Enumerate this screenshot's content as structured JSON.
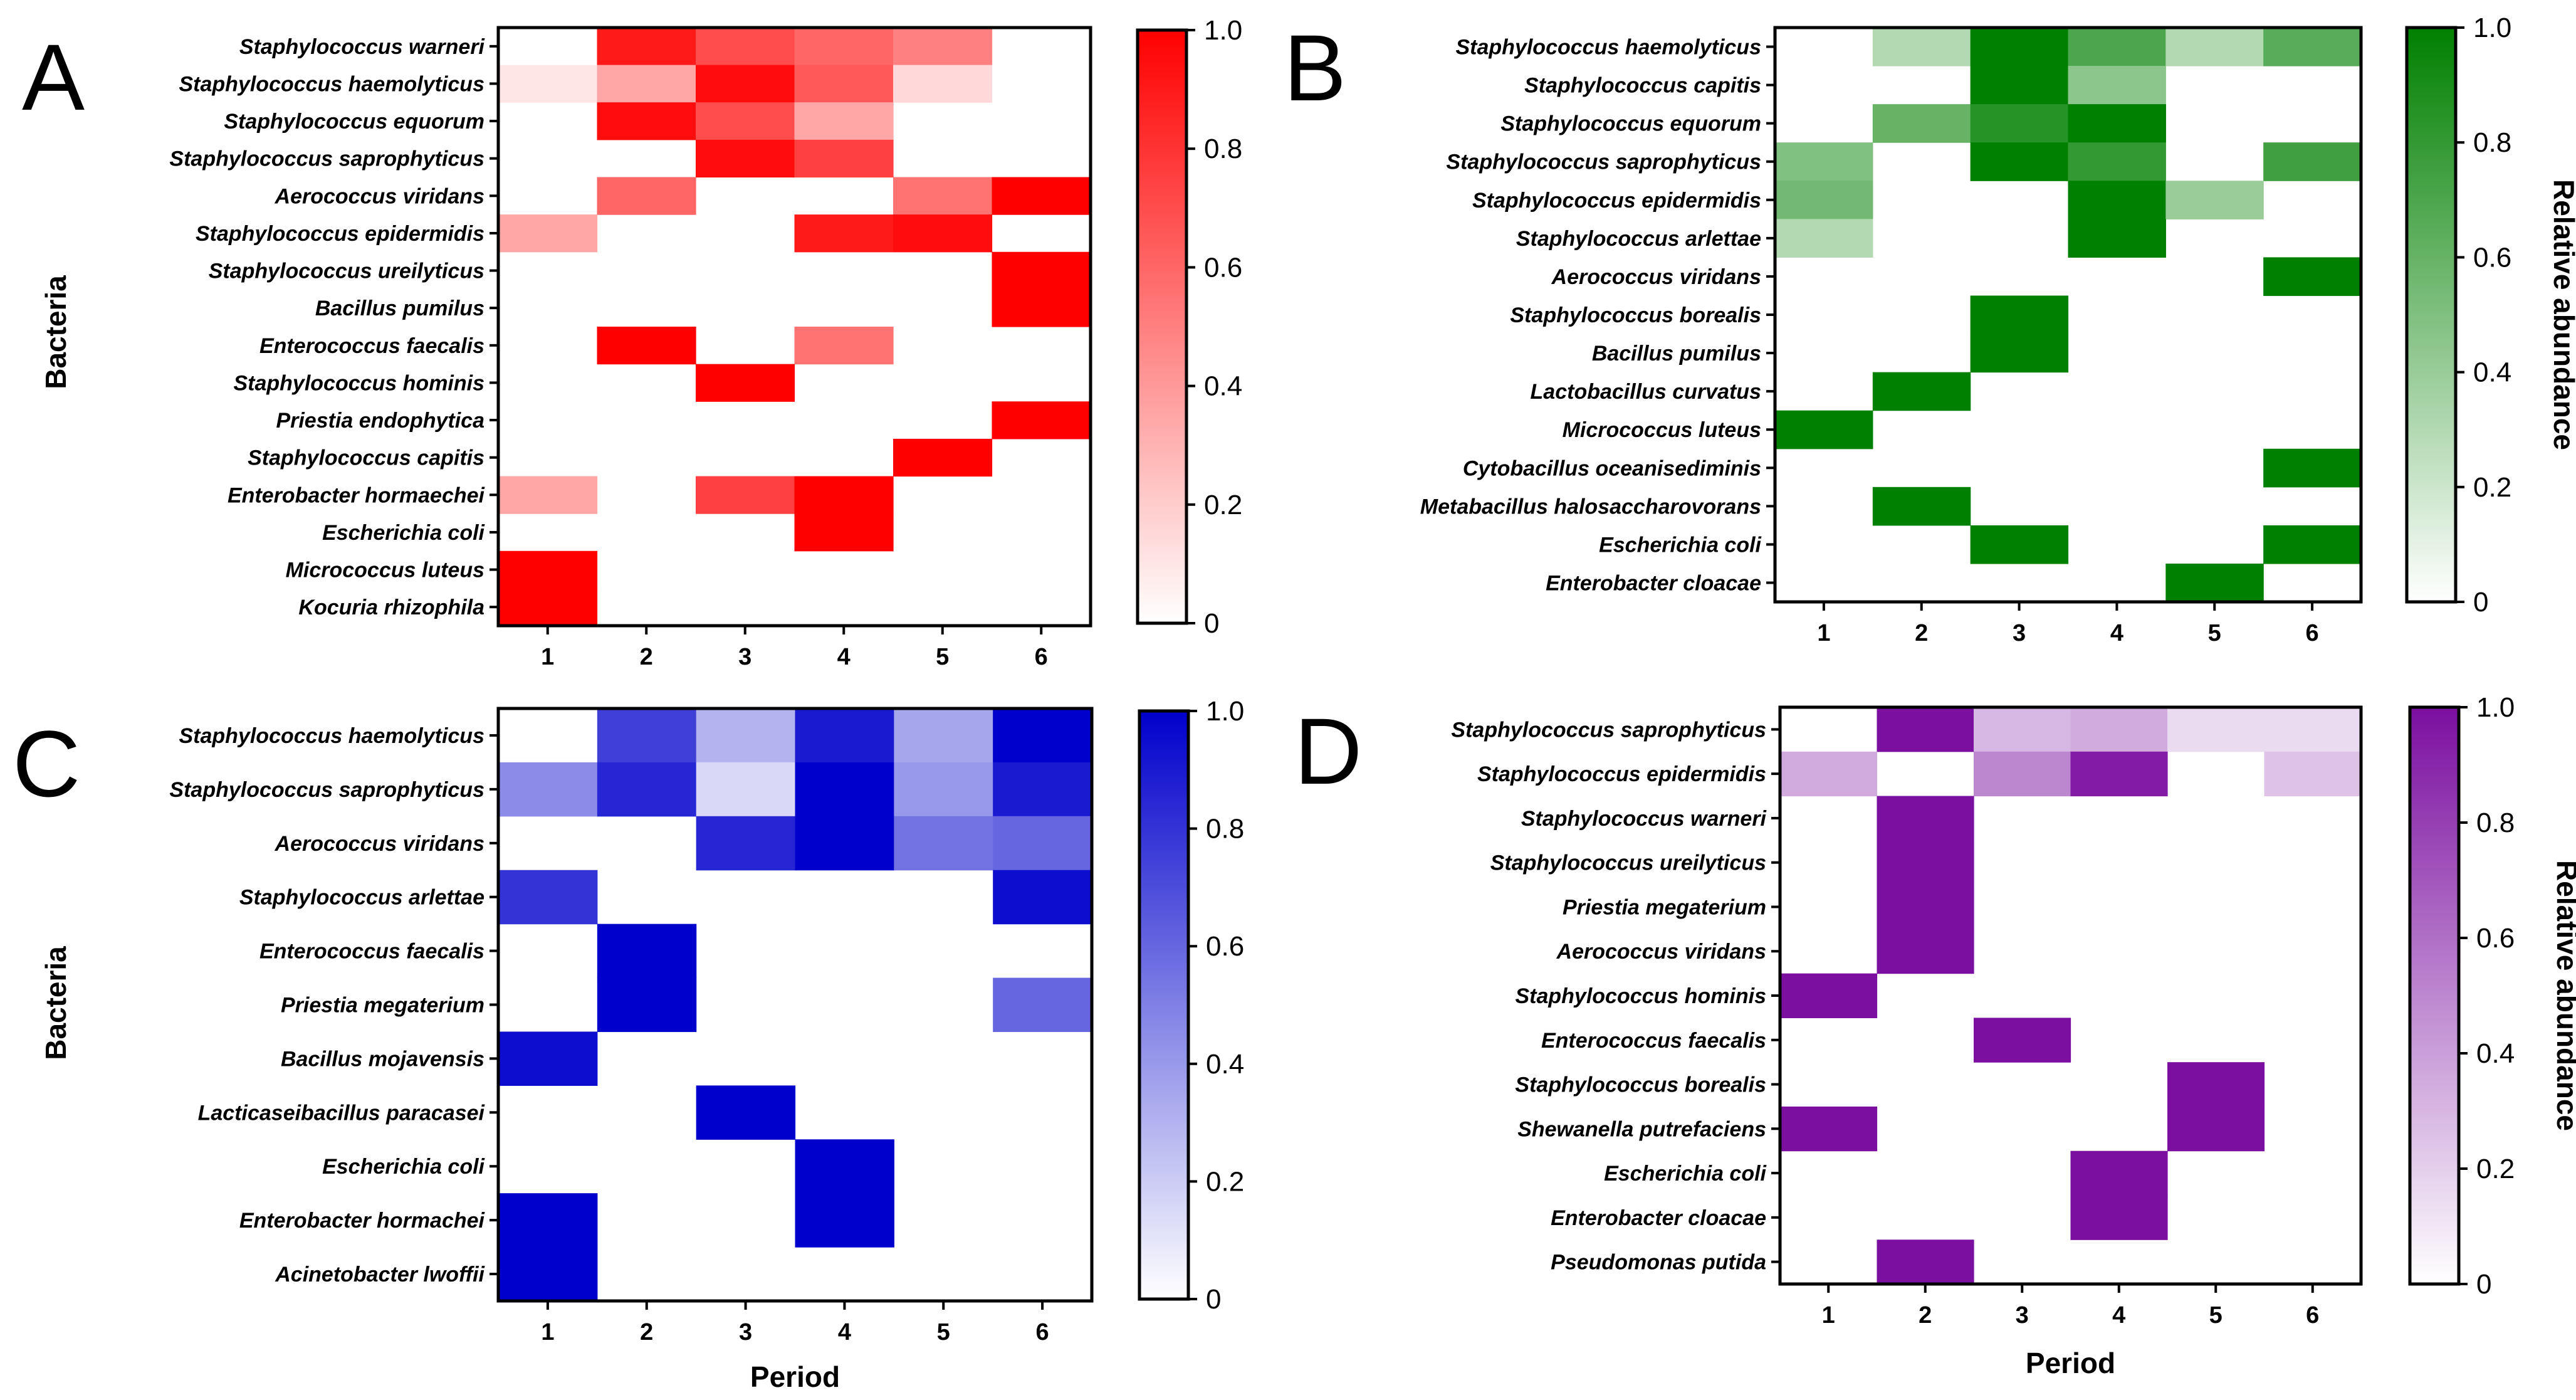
{
  "chart_data": [
    {
      "type": "heatmap",
      "panel_label": "A",
      "color": "#ff0000",
      "xlabel": "",
      "ylabel": "Bacteria",
      "colorbar_label": "",
      "colorbar_ticks": [
        "0",
        "0.2",
        "0.4",
        "0.6",
        "0.8",
        "1.0"
      ],
      "periods": [
        "1",
        "2",
        "3",
        "4",
        "5",
        "6"
      ],
      "species": [
        "Staphylococcus warneri",
        "Staphylococcus haemolyticus",
        "Staphylococcus equorum",
        "Staphylococcus saprophyticus",
        "Aerococcus viridans",
        "Staphylococcus epidermidis",
        "Staphylococcus ureilyticus",
        "Bacillus pumilus",
        "Enterococcus faecalis",
        "Staphylococcus hominis",
        "Priestia endophytica",
        "Staphylococcus capitis",
        "Enterobacter hormaechei",
        "Escherichia coli",
        "Micrococcus luteus",
        "Kocuria rhizophila"
      ],
      "values": [
        [
          0,
          0.9,
          0.7,
          0.6,
          0.5,
          0
        ],
        [
          0.1,
          0.35,
          0.95,
          0.65,
          0.15,
          0
        ],
        [
          0,
          0.95,
          0.7,
          0.35,
          0,
          0
        ],
        [
          0,
          0,
          0.95,
          0.75,
          0,
          0
        ],
        [
          0,
          0.6,
          0,
          0,
          0.55,
          1.0
        ],
        [
          0.35,
          0,
          0,
          0.9,
          0.95,
          0
        ],
        [
          0,
          0,
          0,
          0,
          0,
          1.0
        ],
        [
          0,
          0,
          0,
          0,
          0,
          1.0
        ],
        [
          0,
          1.0,
          0,
          0.55,
          0,
          0
        ],
        [
          0,
          0,
          1.0,
          0,
          0,
          0
        ],
        [
          0,
          0,
          0,
          0,
          0,
          1.0
        ],
        [
          0,
          0,
          0,
          0,
          1.0,
          0
        ],
        [
          0.35,
          0,
          0.75,
          1.0,
          0,
          0
        ],
        [
          0,
          0,
          0,
          1.0,
          0,
          0
        ],
        [
          1.0,
          0,
          0,
          0,
          0,
          0
        ],
        [
          1.0,
          0,
          0,
          0,
          0,
          0
        ]
      ]
    },
    {
      "type": "heatmap",
      "panel_label": "B",
      "color": "#008000",
      "xlabel": "",
      "ylabel": "",
      "colorbar_label": "Relative abundance",
      "colorbar_ticks": [
        "0",
        "0.2",
        "0.4",
        "0.6",
        "0.8",
        "1.0"
      ],
      "periods": [
        "1",
        "2",
        "3",
        "4",
        "5",
        "6"
      ],
      "species": [
        "Staphylococcus haemolyticus",
        "Staphylococcus capitis",
        "Staphylococcus equorum",
        "Staphylococcus saprophyticus",
        "Staphylococcus epidermidis",
        "Staphylococcus arlettae",
        "Aerococcus viridans",
        "Staphylococcus borealis",
        "Bacillus pumilus",
        "Lactobacillus curvatus",
        "Micrococcus luteus",
        "Cytobacillus oceanisediminis",
        "Metabacillus halosaccharovorans",
        "Escherichia coli",
        "Enterobacter cloacae"
      ],
      "values": [
        [
          0,
          0.3,
          1.0,
          0.7,
          0.3,
          0.65
        ],
        [
          0,
          0,
          1.0,
          0.45,
          0,
          0
        ],
        [
          0,
          0.6,
          0.85,
          1.0,
          0,
          0
        ],
        [
          0.5,
          0,
          1.0,
          0.8,
          0,
          0.75
        ],
        [
          0.55,
          0,
          0,
          1.0,
          0.4,
          0
        ],
        [
          0.3,
          0,
          0,
          1.0,
          0,
          0
        ],
        [
          0,
          0,
          0,
          0,
          0,
          1.0
        ],
        [
          0,
          0,
          1.0,
          0,
          0,
          0
        ],
        [
          0,
          0,
          1.0,
          0,
          0,
          0
        ],
        [
          0,
          1.0,
          0,
          0,
          0,
          0
        ],
        [
          1.0,
          0,
          0,
          0,
          0,
          0
        ],
        [
          0,
          0,
          0,
          0,
          0,
          1.0
        ],
        [
          0,
          1.0,
          0,
          0,
          0,
          0
        ],
        [
          0,
          0,
          1.0,
          0,
          0,
          1.0
        ],
        [
          0,
          0,
          0,
          0,
          1.0,
          0
        ]
      ]
    },
    {
      "type": "heatmap",
      "panel_label": "C",
      "color": "#0000cc",
      "xlabel": "Period",
      "ylabel": "Bacteria",
      "colorbar_label": "",
      "colorbar_ticks": [
        "0",
        "0.2",
        "0.4",
        "0.6",
        "0.8",
        "1.0"
      ],
      "periods": [
        "1",
        "2",
        "3",
        "4",
        "5",
        "6"
      ],
      "species": [
        "Staphylococcus haemolyticus",
        "Staphylococcus saprophyticus",
        "Aerococcus viridans",
        "Staphylococcus arlettae",
        "Enterococcus faecalis",
        "Priestia megaterium",
        "Bacillus mojavensis",
        "Lacticaseibacillus paracasei",
        "Escherichia coli",
        "Enterobacter hormachei",
        "Acinetobacter lwoffii"
      ],
      "values": [
        [
          0,
          0.75,
          0.3,
          0.9,
          0.35,
          1.0
        ],
        [
          0.45,
          0.85,
          0.15,
          1.0,
          0.4,
          0.9
        ],
        [
          0,
          0,
          0.85,
          1.0,
          0.55,
          0.6
        ],
        [
          0.8,
          0,
          0,
          0,
          0,
          0.95
        ],
        [
          0,
          1.0,
          0,
          0,
          0,
          0
        ],
        [
          0,
          1.0,
          0,
          0,
          0,
          0.6
        ],
        [
          0.95,
          0,
          0,
          0,
          0,
          0
        ],
        [
          0,
          0,
          1.0,
          0,
          0,
          0
        ],
        [
          0,
          0,
          0,
          1.0,
          0,
          0
        ],
        [
          1.0,
          0,
          0,
          1.0,
          0,
          0
        ],
        [
          1.0,
          0,
          0,
          0,
          0,
          0
        ]
      ]
    },
    {
      "type": "heatmap",
      "panel_label": "D",
      "color": "#7b0fa0",
      "xlabel": "Period",
      "ylabel": "",
      "colorbar_label": "Relative abundance",
      "colorbar_ticks": [
        "0",
        "0.2",
        "0.4",
        "0.6",
        "0.8",
        "1.0"
      ],
      "periods": [
        "1",
        "2",
        "3",
        "4",
        "5",
        "6"
      ],
      "species": [
        "Staphylococcus saprophyticus",
        "Staphylococcus epidermidis",
        "Staphylococcus warneri",
        "Staphylococcus ureilyticus",
        "Priestia megaterium",
        "Aerococcus viridans",
        "Staphylococcus hominis",
        "Enterococcus faecalis",
        "Staphylococcus borealis",
        "Shewanella putrefaciens",
        "Escherichia coli",
        "Enterobacter cloacae",
        "Pseudomonas putida"
      ],
      "values": [
        [
          0,
          1.0,
          0.3,
          0.35,
          0.15,
          0.15
        ],
        [
          0.35,
          0,
          0.5,
          0.95,
          0,
          0.25
        ],
        [
          0,
          1.0,
          0,
          0,
          0,
          0
        ],
        [
          0,
          1.0,
          0,
          0,
          0,
          0
        ],
        [
          0,
          1.0,
          0,
          0,
          0,
          0
        ],
        [
          0,
          1.0,
          0,
          0,
          0,
          0
        ],
        [
          1.0,
          0,
          0,
          0,
          0,
          0
        ],
        [
          0,
          0,
          1.0,
          0,
          0,
          0
        ],
        [
          0,
          0,
          0,
          0,
          1.0,
          0
        ],
        [
          1.0,
          0,
          0,
          0,
          1.0,
          0
        ],
        [
          0,
          0,
          0,
          1.0,
          0,
          0
        ],
        [
          0,
          0,
          0,
          1.0,
          0,
          0
        ],
        [
          0,
          1.0,
          0,
          0,
          0,
          0
        ]
      ]
    }
  ]
}
